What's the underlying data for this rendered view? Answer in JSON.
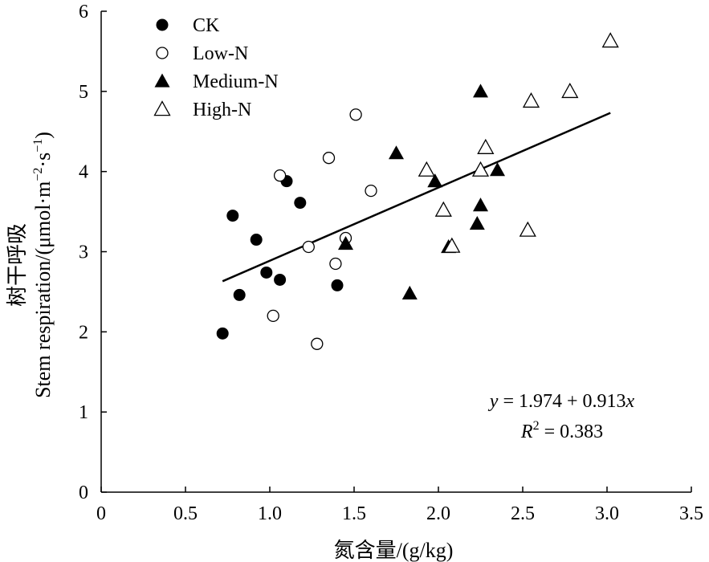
{
  "chart_data": {
    "type": "scatter",
    "xlabel": "氮含量/(g/kg)",
    "ylabel_cn": "树干呼吸",
    "ylabel_en_prefix": "Stem respiration/(μmol·m",
    "ylabel_en_sup1": "−2",
    "ylabel_en_mid": "·s",
    "ylabel_en_sup2": "−1",
    "ylabel_en_suffix": ")",
    "xlim": [
      0,
      3.5
    ],
    "ylim": [
      0,
      6
    ],
    "xticks": [
      0,
      0.5,
      1.0,
      1.5,
      2.0,
      2.5,
      3.0,
      3.5
    ],
    "xtick_labels": [
      "0",
      "0.5",
      "1.0",
      "1.5",
      "2.0",
      "2.5",
      "3.0",
      "3.5"
    ],
    "yticks": [
      0,
      1,
      2,
      3,
      4,
      5,
      6
    ],
    "ytick_labels": [
      "0",
      "1",
      "2",
      "3",
      "4",
      "5",
      "6"
    ],
    "grid": false,
    "legend_position": "top-left",
    "series": [
      {
        "name": "CK",
        "marker": "circle-filled",
        "points": [
          [
            0.72,
            1.98
          ],
          [
            0.78,
            3.45
          ],
          [
            0.82,
            2.46
          ],
          [
            0.92,
            3.15
          ],
          [
            0.98,
            2.74
          ],
          [
            1.06,
            2.65
          ],
          [
            1.1,
            3.88
          ],
          [
            1.18,
            3.61
          ],
          [
            1.4,
            2.58
          ]
        ]
      },
      {
        "name": "Low-N",
        "marker": "circle-open",
        "points": [
          [
            1.02,
            2.2
          ],
          [
            1.06,
            3.95
          ],
          [
            1.23,
            3.06
          ],
          [
            1.28,
            1.85
          ],
          [
            1.35,
            4.17
          ],
          [
            1.39,
            2.85
          ],
          [
            1.45,
            3.17
          ],
          [
            1.51,
            4.71
          ],
          [
            1.6,
            3.76
          ]
        ]
      },
      {
        "name": "Medium-N",
        "marker": "triangle-filled",
        "points": [
          [
            1.45,
            3.1
          ],
          [
            1.75,
            4.23
          ],
          [
            1.83,
            2.48
          ],
          [
            1.98,
            3.88
          ],
          [
            2.06,
            3.06
          ],
          [
            2.23,
            3.35
          ],
          [
            2.25,
            3.58
          ],
          [
            2.25,
            5.0
          ],
          [
            2.35,
            4.02
          ]
        ]
      },
      {
        "name": "High-N",
        "marker": "triangle-open",
        "points": [
          [
            1.93,
            4.02
          ],
          [
            2.03,
            3.52
          ],
          [
            2.08,
            3.07
          ],
          [
            2.25,
            4.02
          ],
          [
            2.28,
            4.3
          ],
          [
            2.53,
            3.27
          ],
          [
            2.55,
            4.88
          ],
          [
            2.78,
            5.0
          ],
          [
            3.02,
            5.63
          ]
        ]
      }
    ],
    "fit_line": {
      "x_range": [
        0.72,
        3.02
      ],
      "intercept": 1.974,
      "slope": 0.913
    },
    "equation": {
      "y_var": "y",
      "eq_text": " = 1.974 + 0.913",
      "x_var": "x",
      "r_var": "R",
      "r_sup": "2",
      "r_text": " = 0.383"
    }
  }
}
